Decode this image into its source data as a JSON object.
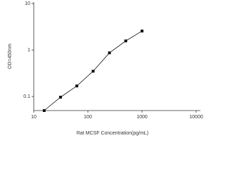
{
  "chart_data": {
    "type": "scatter",
    "x_label": "Rat MCSF Concentration(pg/mL)",
    "y_label": "OD=450nm",
    "x": [
      15.6,
      31.25,
      62.5,
      125,
      250,
      500,
      1000
    ],
    "values": [
      0.05,
      0.097,
      0.169,
      0.351,
      0.87,
      1.57,
      2.56
    ],
    "color": "#111111",
    "log_x": true,
    "log_y": true,
    "connect": true,
    "xlim": [
      10,
      10000
    ],
    "xticks": [
      10,
      100,
      1000,
      10000
    ],
    "ylim": [
      0.05,
      10
    ],
    "yticks": [
      0.1,
      1,
      10
    ]
  }
}
